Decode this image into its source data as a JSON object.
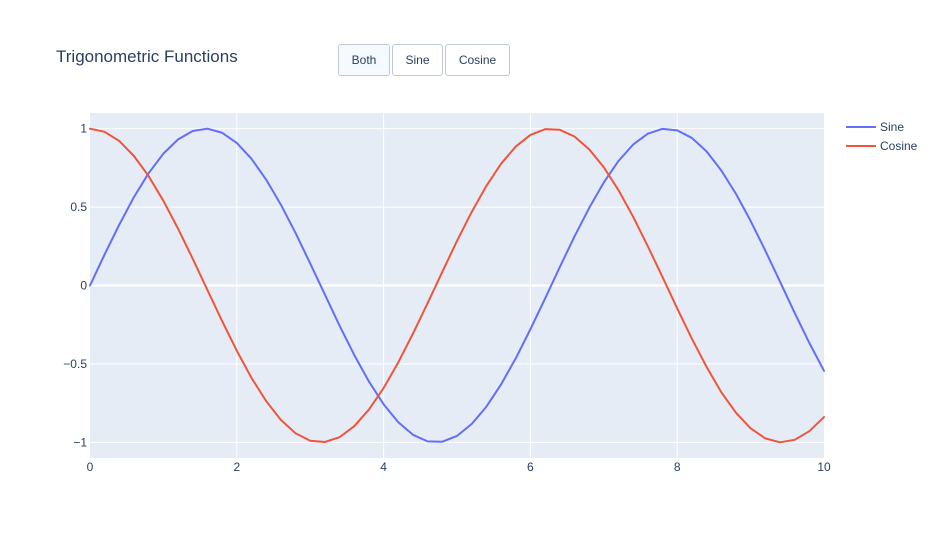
{
  "chart_data": {
    "type": "line",
    "title": "Trigonometric Functions",
    "xlabel": "",
    "ylabel": "",
    "xlim": [
      0,
      10
    ],
    "ylim": [
      -1.1,
      1.1
    ],
    "x_ticks": [
      0,
      2,
      4,
      6,
      8,
      10
    ],
    "x_tick_labels": [
      "0",
      "2",
      "4",
      "6",
      "8",
      "10"
    ],
    "y_ticks": [
      -1,
      -0.5,
      0,
      0.5,
      1
    ],
    "y_tick_labels": [
      "−1",
      "−0.5",
      "0",
      "0.5",
      "1"
    ],
    "grid": true,
    "legend_position": "top-right",
    "background_color": "#e5ecf6",
    "x": [
      0,
      0.2,
      0.4,
      0.6,
      0.8,
      1.0,
      1.2,
      1.4,
      1.6,
      1.8,
      2.0,
      2.2,
      2.4,
      2.6,
      2.8,
      3.0,
      3.2,
      3.4,
      3.6,
      3.8,
      4.0,
      4.2,
      4.4,
      4.6,
      4.8,
      5.0,
      5.2,
      5.4,
      5.6,
      5.8,
      6.0,
      6.2,
      6.4,
      6.6,
      6.8,
      7.0,
      7.2,
      7.4,
      7.6,
      7.8,
      8.0,
      8.2,
      8.4,
      8.6,
      8.8,
      9.0,
      9.2,
      9.4,
      9.6,
      9.8,
      10.0
    ],
    "series": [
      {
        "name": "Sine",
        "color": "#636efa",
        "values": [
          0,
          0.199,
          0.389,
          0.565,
          0.717,
          0.841,
          0.932,
          0.985,
          1.0,
          0.974,
          0.909,
          0.808,
          0.675,
          0.516,
          0.335,
          0.141,
          -0.058,
          -0.256,
          -0.443,
          -0.612,
          -0.757,
          -0.872,
          -0.952,
          -0.994,
          -0.996,
          -0.959,
          -0.883,
          -0.773,
          -0.631,
          -0.465,
          -0.279,
          -0.083,
          0.117,
          0.312,
          0.494,
          0.657,
          0.794,
          0.899,
          0.968,
          0.999,
          0.989,
          0.941,
          0.855,
          0.734,
          0.585,
          0.412,
          0.223,
          0.025,
          -0.174,
          -0.366,
          -0.544
        ]
      },
      {
        "name": "Cosine",
        "color": "#ef553b",
        "values": [
          1.0,
          0.98,
          0.921,
          0.825,
          0.697,
          0.54,
          0.362,
          0.17,
          -0.029,
          -0.227,
          -0.416,
          -0.589,
          -0.737,
          -0.857,
          -0.942,
          -0.99,
          -0.998,
          -0.967,
          -0.897,
          -0.791,
          -0.654,
          -0.49,
          -0.307,
          -0.112,
          0.087,
          0.284,
          0.469,
          0.635,
          0.776,
          0.886,
          0.96,
          0.997,
          0.993,
          0.95,
          0.869,
          0.754,
          0.608,
          0.438,
          0.25,
          0.054,
          -0.146,
          -0.339,
          -0.519,
          -0.68,
          -0.811,
          -0.911,
          -0.975,
          -1.0,
          -0.984,
          -0.929,
          -0.839
        ]
      }
    ]
  },
  "controls": {
    "buttons": [
      {
        "label": "Both",
        "active": true
      },
      {
        "label": "Sine",
        "active": false
      },
      {
        "label": "Cosine",
        "active": false
      }
    ]
  }
}
